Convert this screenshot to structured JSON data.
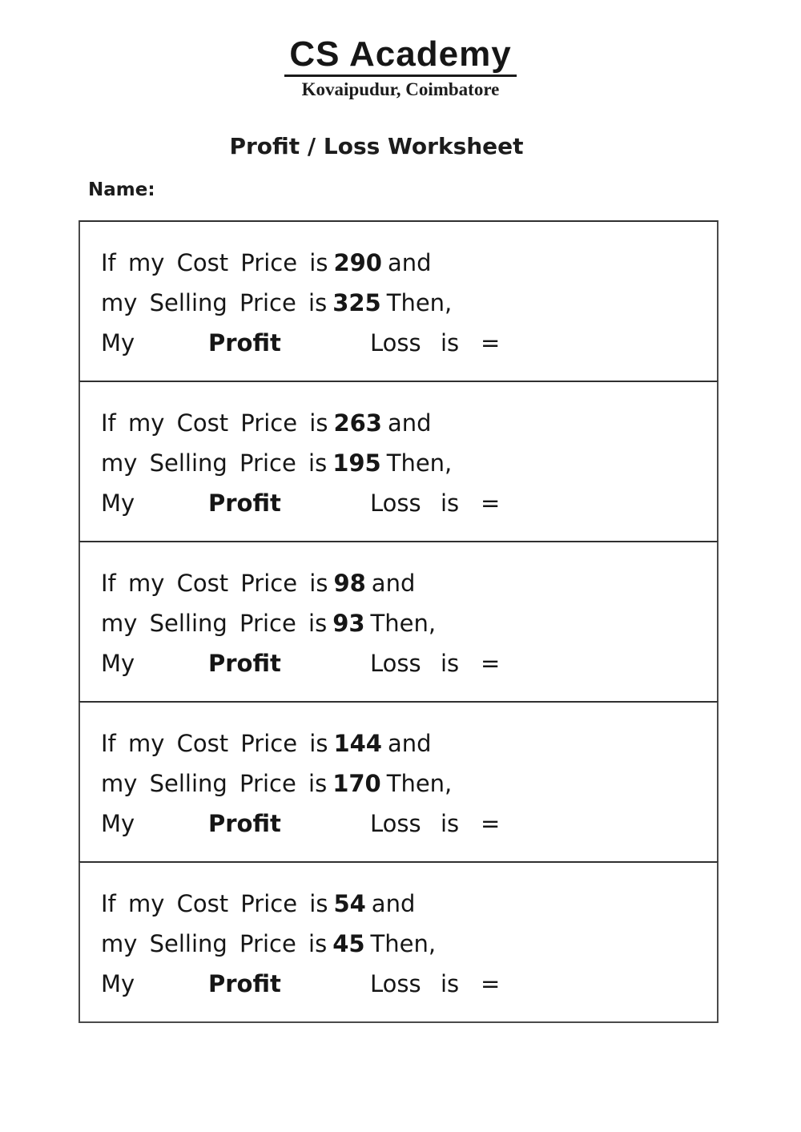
{
  "header": {
    "logo": "CS Academy",
    "subtitle": "Kovaipudur, Coimbatore"
  },
  "title": "Profit / Loss Worksheet",
  "name_label": "Name:",
  "labels": {
    "line1_prefix": "If my Cost Price is",
    "line1_suffix": "and",
    "line2_prefix": "my Selling Price is",
    "line2_suffix": "Then,",
    "my": "My",
    "profit": "Profit",
    "loss": "Loss",
    "is": "is",
    "equals": "="
  },
  "questions": [
    {
      "cost_price": "290",
      "selling_price": "325"
    },
    {
      "cost_price": "263",
      "selling_price": "195"
    },
    {
      "cost_price": "98",
      "selling_price": "93"
    },
    {
      "cost_price": "144",
      "selling_price": "170"
    },
    {
      "cost_price": "54",
      "selling_price": "45"
    }
  ]
}
